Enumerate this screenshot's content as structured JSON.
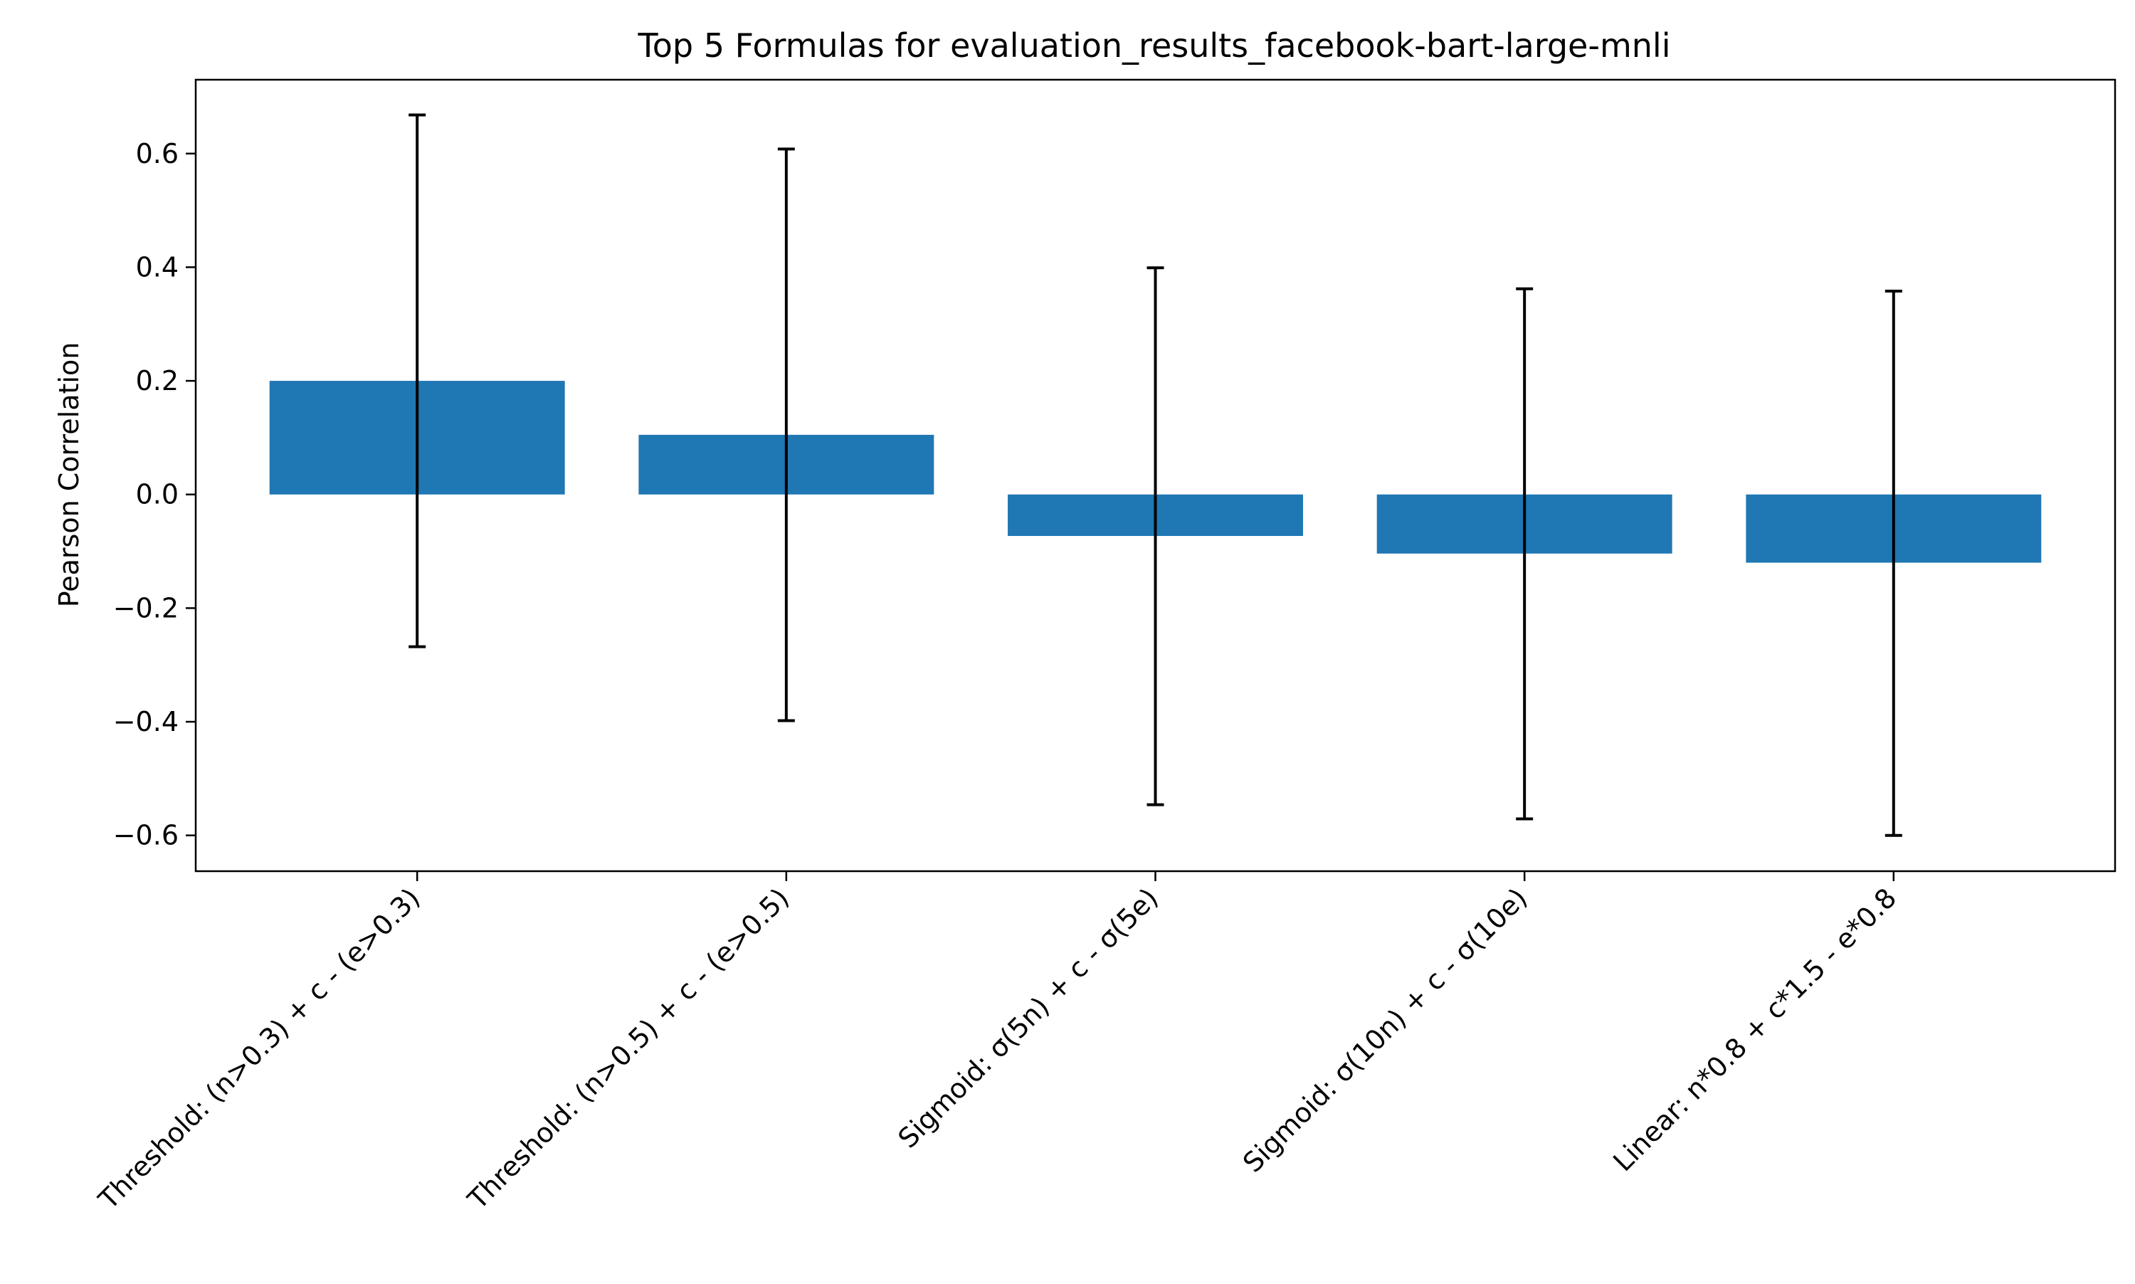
{
  "chart_data": {
    "type": "bar",
    "title": "Top 5 Formulas for evaluation_results_facebook-bart-large-mnli",
    "xlabel": "",
    "ylabel": "Pearson Correlation",
    "categories": [
      "Threshold: (n>0.3) + c - (e>0.3)",
      "Threshold: (n>0.5) + c - (e>0.5)",
      "Sigmoid: σ(5n) + c - σ(5e)",
      "Sigmoid: σ(10n) + c - σ(10e)",
      "Linear: n*0.8 + c*1.5 - e*0.8"
    ],
    "values": [
      0.2,
      0.105,
      -0.073,
      -0.104,
      -0.12
    ],
    "error_low": [
      -0.268,
      -0.398,
      -0.546,
      -0.571,
      -0.6
    ],
    "error_high": [
      0.668,
      0.608,
      0.399,
      0.362,
      0.358
    ],
    "ylim": [
      -0.663,
      0.73
    ],
    "yticks": [
      -0.6,
      -0.4,
      -0.2,
      0.0,
      0.2,
      0.4,
      0.6
    ],
    "ytick_labels": [
      "−0.6",
      "−0.4",
      "−0.2",
      "0.0",
      "0.2",
      "0.4",
      "0.6"
    ],
    "grid": false,
    "colors": {
      "bar": "#1f77b4",
      "error": "#000000",
      "axis": "#000000"
    }
  }
}
